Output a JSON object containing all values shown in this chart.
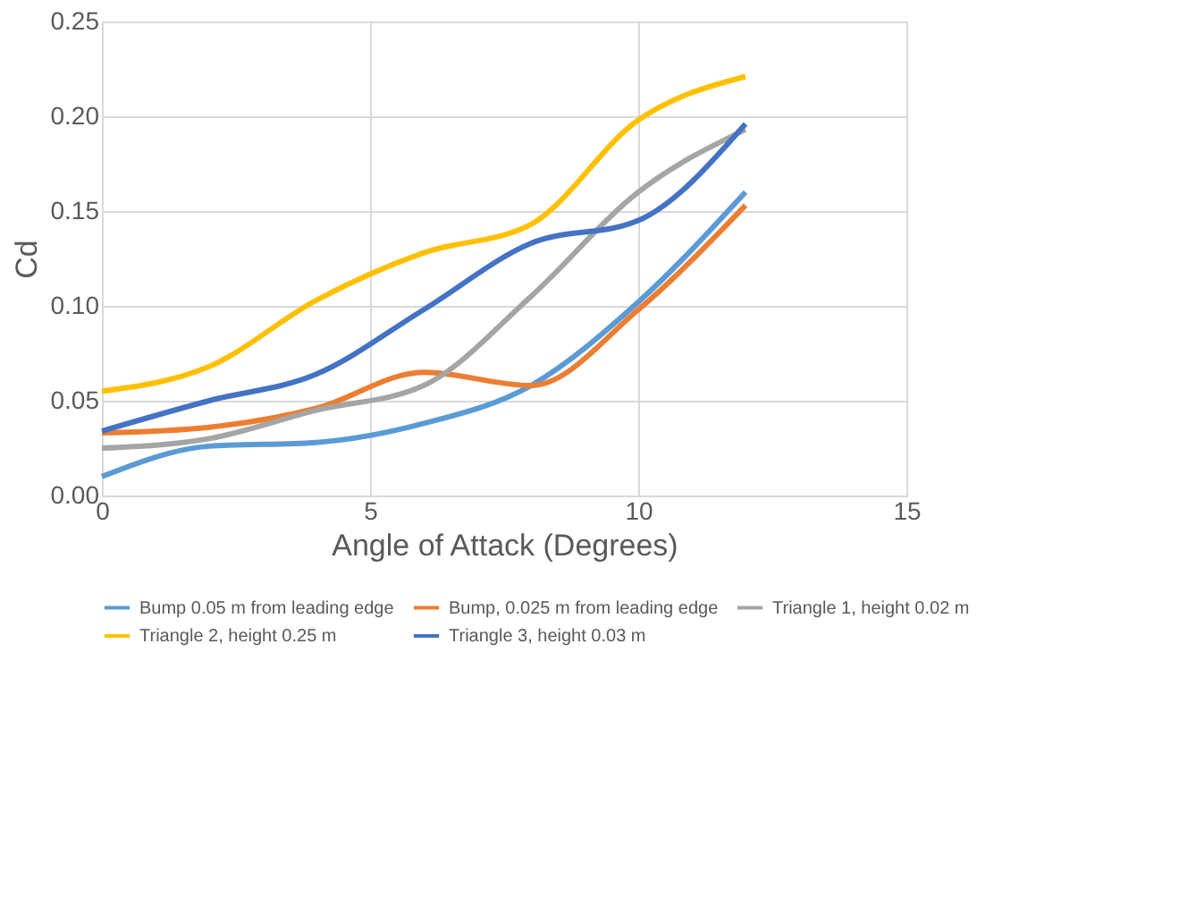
{
  "chart_data": {
    "type": "line",
    "xlabel": "Angle of Attack (Degrees)",
    "ylabel": "Cd",
    "x": [
      0,
      2,
      4,
      6,
      8,
      10,
      12
    ],
    "series": [
      {
        "name": "Bump 0.05 m from leading edge",
        "color": "#5b9bd5",
        "values": [
          0.01,
          0.026,
          0.028,
          0.038,
          0.058,
          0.102,
          0.16
        ]
      },
      {
        "name": "Bump, 0.025 m from leading edge",
        "color": "#ed7d31",
        "values": [
          0.033,
          0.036,
          0.046,
          0.065,
          0.058,
          0.098,
          0.153
        ]
      },
      {
        "name": "Triangle 1, height 0.02 m",
        "color": "#a5a5a5",
        "values": [
          0.025,
          0.03,
          0.045,
          0.058,
          0.105,
          0.16,
          0.193
        ]
      },
      {
        "name": "Triangle 2, height 0.25 m",
        "color": "#ffc000",
        "values": [
          0.055,
          0.068,
          0.103,
          0.128,
          0.143,
          0.198,
          0.221
        ]
      },
      {
        "name": "Triangle 3, height 0.03 m",
        "color": "#4472c4",
        "values": [
          0.034,
          0.05,
          0.064,
          0.098,
          0.133,
          0.145,
          0.196
        ]
      }
    ],
    "xlim": [
      0,
      15
    ],
    "xticks": [
      0,
      5,
      10,
      15
    ],
    "ylim": [
      0,
      0.25
    ],
    "yticks": [
      {
        "value": 0,
        "label": "0.00"
      },
      {
        "value": 0.05,
        "label": "0.05"
      },
      {
        "value": 0.1,
        "label": "0.10"
      },
      {
        "value": 0.15,
        "label": "0.15"
      },
      {
        "value": 0.2,
        "label": "0.20"
      },
      {
        "value": 0.25,
        "label": "0.25"
      }
    ],
    "grid": true,
    "legend": "bottom",
    "marker": "none",
    "line_style": "solid"
  }
}
